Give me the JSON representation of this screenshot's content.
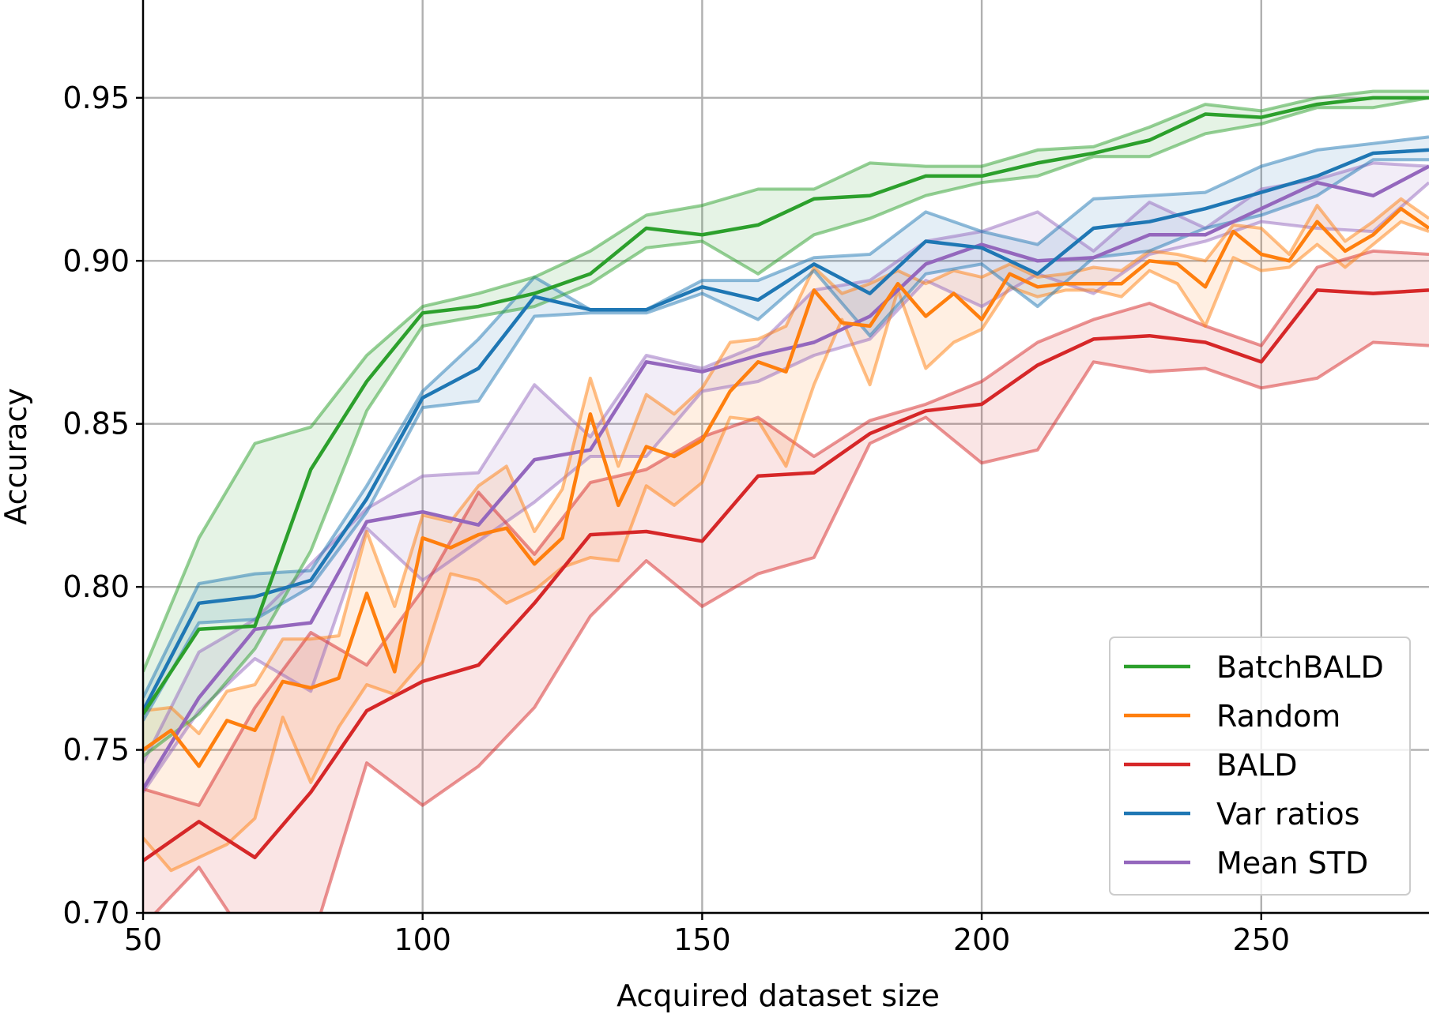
{
  "chart_data": {
    "type": "line",
    "title": "",
    "xlabel": "Acquired dataset size",
    "ylabel": "Accuracy",
    "xlim": [
      50,
      280
    ],
    "ylim": [
      0.7,
      0.98
    ],
    "xticks": [
      50,
      100,
      150,
      200,
      250
    ],
    "xtick_labels": [
      "50",
      "100",
      "150",
      "200",
      "250"
    ],
    "yticks": [
      0.7,
      0.75,
      0.8,
      0.85,
      0.9,
      0.95
    ],
    "ytick_labels": [
      "0.70",
      "0.75",
      "0.80",
      "0.85",
      "0.90",
      "0.95"
    ],
    "grid": true,
    "legend_position": "lower-right",
    "series": [
      {
        "name": "Mean STD",
        "color": "#9467bd",
        "x": [
          50,
          60,
          70,
          80,
          90,
          100,
          110,
          120,
          130,
          140,
          150,
          160,
          170,
          180,
          190,
          200,
          210,
          220,
          230,
          240,
          250,
          260,
          270,
          280
        ],
        "mean": [
          0.738,
          0.766,
          0.787,
          0.789,
          0.82,
          0.823,
          0.819,
          0.839,
          0.842,
          0.869,
          0.866,
          0.871,
          0.875,
          0.883,
          0.899,
          0.905,
          0.9,
          0.901,
          0.908,
          0.908,
          0.916,
          0.924,
          0.92,
          0.929
        ],
        "upper": [
          0.746,
          0.78,
          0.79,
          0.807,
          0.824,
          0.834,
          0.835,
          0.862,
          0.846,
          0.871,
          0.867,
          0.874,
          0.891,
          0.894,
          0.906,
          0.909,
          0.915,
          0.903,
          0.918,
          0.91,
          0.922,
          0.925,
          0.93,
          0.929
        ],
        "lower": [
          0.737,
          0.762,
          0.778,
          0.768,
          0.818,
          0.802,
          0.814,
          0.826,
          0.84,
          0.84,
          0.86,
          0.863,
          0.871,
          0.876,
          0.894,
          0.886,
          0.896,
          0.89,
          0.902,
          0.906,
          0.912,
          0.91,
          0.909,
          0.924
        ]
      },
      {
        "name": "BALD",
        "color": "#d62728",
        "x": [
          50,
          60,
          70,
          80,
          90,
          100,
          110,
          120,
          130,
          140,
          150,
          160,
          170,
          180,
          190,
          200,
          210,
          220,
          230,
          240,
          250,
          260,
          270,
          280
        ],
        "mean": [
          0.716,
          0.728,
          0.717,
          0.737,
          0.762,
          0.771,
          0.776,
          0.795,
          0.816,
          0.817,
          0.814,
          0.834,
          0.835,
          0.847,
          0.854,
          0.856,
          0.868,
          0.876,
          0.877,
          0.875,
          0.869,
          0.891,
          0.89,
          0.891
        ],
        "upper": [
          0.738,
          0.733,
          0.763,
          0.786,
          0.776,
          0.799,
          0.829,
          0.81,
          0.832,
          0.836,
          0.846,
          0.852,
          0.84,
          0.851,
          0.856,
          0.863,
          0.875,
          0.882,
          0.887,
          0.88,
          0.874,
          0.898,
          0.903,
          0.902
        ],
        "lower": [
          0.696,
          0.714,
          0.688,
          0.69,
          0.746,
          0.733,
          0.745,
          0.763,
          0.791,
          0.808,
          0.794,
          0.804,
          0.809,
          0.844,
          0.852,
          0.838,
          0.842,
          0.869,
          0.866,
          0.867,
          0.861,
          0.864,
          0.875,
          0.874
        ]
      },
      {
        "name": "Random",
        "color": "#ff7f0e",
        "x": [
          50,
          55,
          60,
          65,
          70,
          75,
          80,
          85,
          90,
          95,
          100,
          105,
          110,
          115,
          120,
          125,
          130,
          135,
          140,
          145,
          150,
          155,
          160,
          165,
          170,
          175,
          180,
          185,
          190,
          195,
          200,
          205,
          210,
          215,
          220,
          225,
          230,
          235,
          240,
          245,
          250,
          255,
          260,
          265,
          270,
          275,
          280
        ],
        "mean": [
          0.75,
          0.756,
          0.745,
          0.759,
          0.756,
          0.771,
          0.769,
          0.772,
          0.798,
          0.774,
          0.815,
          0.812,
          0.816,
          0.818,
          0.807,
          0.815,
          0.853,
          0.825,
          0.843,
          0.84,
          0.845,
          0.86,
          0.869,
          0.866,
          0.891,
          0.881,
          0.88,
          0.893,
          0.883,
          0.89,
          0.882,
          0.896,
          0.892,
          0.893,
          0.893,
          0.893,
          0.9,
          0.899,
          0.892,
          0.909,
          0.902,
          0.9,
          0.912,
          0.903,
          0.908,
          0.916,
          0.91
        ],
        "upper": [
          0.762,
          0.763,
          0.755,
          0.768,
          0.77,
          0.784,
          0.784,
          0.785,
          0.817,
          0.794,
          0.822,
          0.82,
          0.831,
          0.837,
          0.817,
          0.83,
          0.864,
          0.837,
          0.859,
          0.853,
          0.861,
          0.875,
          0.876,
          0.88,
          0.898,
          0.89,
          0.893,
          0.897,
          0.893,
          0.897,
          0.895,
          0.899,
          0.895,
          0.896,
          0.898,
          0.897,
          0.903,
          0.902,
          0.9,
          0.911,
          0.91,
          0.902,
          0.917,
          0.906,
          0.912,
          0.919,
          0.913
        ],
        "lower": [
          0.723,
          0.713,
          0.717,
          0.721,
          0.729,
          0.76,
          0.74,
          0.757,
          0.77,
          0.767,
          0.777,
          0.804,
          0.802,
          0.795,
          0.799,
          0.806,
          0.809,
          0.808,
          0.831,
          0.825,
          0.832,
          0.852,
          0.851,
          0.837,
          0.862,
          0.882,
          0.862,
          0.891,
          0.867,
          0.875,
          0.879,
          0.892,
          0.889,
          0.891,
          0.891,
          0.889,
          0.897,
          0.893,
          0.88,
          0.901,
          0.897,
          0.898,
          0.905,
          0.898,
          0.905,
          0.912,
          0.909
        ]
      },
      {
        "name": "Var ratios",
        "color": "#1f77b4",
        "x": [
          50,
          60,
          70,
          80,
          90,
          100,
          110,
          120,
          130,
          140,
          150,
          160,
          170,
          180,
          190,
          200,
          210,
          220,
          230,
          240,
          250,
          260,
          270,
          280
        ],
        "mean": [
          0.762,
          0.795,
          0.797,
          0.802,
          0.827,
          0.858,
          0.867,
          0.889,
          0.885,
          0.885,
          0.892,
          0.888,
          0.899,
          0.89,
          0.906,
          0.904,
          0.896,
          0.91,
          0.912,
          0.916,
          0.921,
          0.926,
          0.933,
          0.934
        ],
        "upper": [
          0.766,
          0.801,
          0.804,
          0.805,
          0.831,
          0.86,
          0.876,
          0.895,
          0.885,
          0.885,
          0.894,
          0.894,
          0.901,
          0.902,
          0.915,
          0.909,
          0.905,
          0.919,
          0.92,
          0.921,
          0.929,
          0.934,
          0.936,
          0.938
        ],
        "lower": [
          0.759,
          0.789,
          0.79,
          0.8,
          0.823,
          0.855,
          0.857,
          0.883,
          0.884,
          0.884,
          0.89,
          0.882,
          0.897,
          0.877,
          0.896,
          0.899,
          0.886,
          0.901,
          0.903,
          0.91,
          0.914,
          0.92,
          0.931,
          0.931
        ]
      },
      {
        "name": "BatchBALD",
        "color": "#2ca02c",
        "x": [
          50,
          60,
          70,
          80,
          90,
          100,
          110,
          120,
          130,
          140,
          150,
          160,
          170,
          180,
          190,
          200,
          210,
          220,
          230,
          240,
          250,
          260,
          270,
          280
        ],
        "mean": [
          0.761,
          0.787,
          0.788,
          0.836,
          0.863,
          0.884,
          0.886,
          0.89,
          0.896,
          0.91,
          0.908,
          0.911,
          0.919,
          0.92,
          0.926,
          0.926,
          0.93,
          0.933,
          0.937,
          0.945,
          0.944,
          0.948,
          0.95,
          0.95
        ],
        "upper": [
          0.774,
          0.815,
          0.844,
          0.849,
          0.871,
          0.886,
          0.89,
          0.895,
          0.903,
          0.914,
          0.917,
          0.922,
          0.922,
          0.93,
          0.929,
          0.929,
          0.934,
          0.935,
          0.941,
          0.948,
          0.946,
          0.95,
          0.952,
          0.952
        ],
        "lower": [
          0.748,
          0.761,
          0.781,
          0.811,
          0.854,
          0.88,
          0.883,
          0.886,
          0.893,
          0.904,
          0.906,
          0.896,
          0.908,
          0.913,
          0.92,
          0.924,
          0.926,
          0.932,
          0.932,
          0.939,
          0.942,
          0.947,
          0.947,
          0.95
        ]
      }
    ],
    "legend": [
      {
        "name": "BatchBALD",
        "color": "#2ca02c"
      },
      {
        "name": "Random",
        "color": "#ff7f0e"
      },
      {
        "name": "BALD",
        "color": "#d62728"
      },
      {
        "name": "Var ratios",
        "color": "#1f77b4"
      },
      {
        "name": "Mean STD",
        "color": "#9467bd"
      }
    ]
  }
}
